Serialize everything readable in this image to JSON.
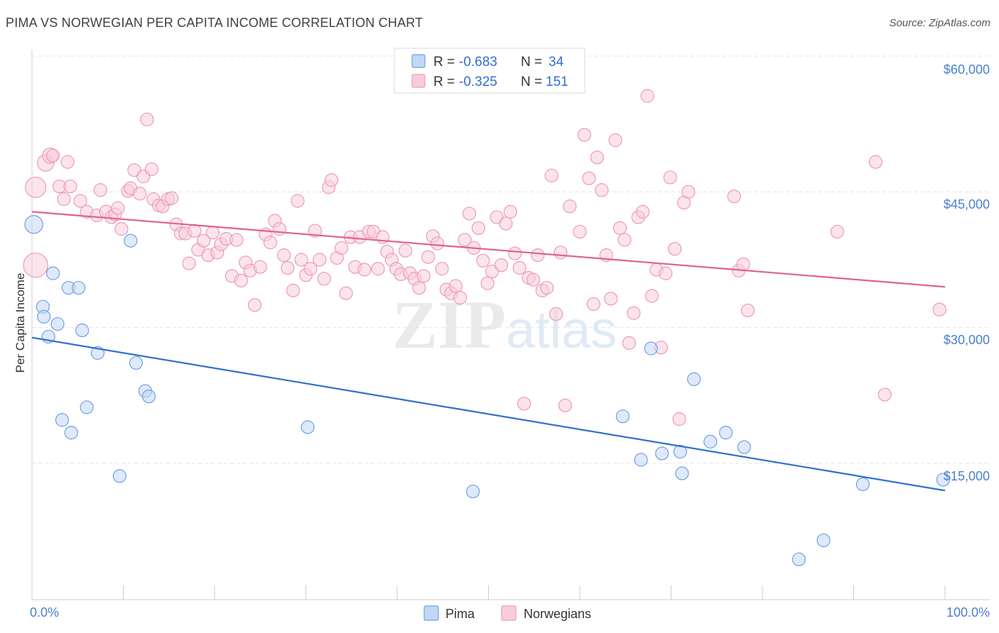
{
  "header": {
    "title": "PIMA VS NORWEGIAN PER CAPITA INCOME CORRELATION CHART",
    "source": "Source: ZipAtlas.com"
  },
  "watermark": {
    "zip": "ZIP",
    "atlas": "atlas"
  },
  "chart_data": {
    "type": "scatter",
    "ylabel": "Per Capita Income",
    "x_tick_labels": [
      "0.0%",
      "100.0%"
    ],
    "y_tick_labels": [
      "$60,000",
      "$45,000",
      "$30,000",
      "$15,000"
    ],
    "y_ticks": [
      60000,
      45000,
      30000,
      15000
    ],
    "xlim": [
      0,
      100
    ],
    "ylim": [
      1000,
      62000
    ],
    "grid": true,
    "legend_placement": "top-center",
    "stats": [
      {
        "r_label": "R = ",
        "r": "-0.683",
        "n_label": "N = ",
        "n": "34"
      },
      {
        "r_label": "R = ",
        "r": "-0.325",
        "n_label": "N = ",
        "n": "151"
      }
    ],
    "series": [
      {
        "name": "Pima",
        "color": "#6fa1e4",
        "fill": "#c3d7f4",
        "line_color": "#2f6fcf",
        "trend": [
          [
            0,
            28900
          ],
          [
            100,
            12000
          ]
        ],
        "points": [
          [
            0.2,
            41400,
            1.4
          ],
          [
            2.3,
            36000,
            1
          ],
          [
            1.2,
            32300,
            1
          ],
          [
            1.3,
            31200,
            1
          ],
          [
            2.8,
            30400,
            1
          ],
          [
            1.8,
            29000,
            1
          ],
          [
            4.0,
            34400,
            1
          ],
          [
            5.1,
            34400,
            1
          ],
          [
            5.5,
            29700,
            1
          ],
          [
            7.2,
            27200,
            1
          ],
          [
            10.8,
            39600,
            1
          ],
          [
            11.4,
            26100,
            1
          ],
          [
            12.4,
            23000,
            1
          ],
          [
            12.8,
            22400,
            1
          ],
          [
            6.0,
            21200,
            1
          ],
          [
            3.3,
            19800,
            1
          ],
          [
            4.3,
            18400,
            1
          ],
          [
            9.6,
            13600,
            1
          ],
          [
            30.2,
            19000,
            1
          ],
          [
            48.3,
            11900,
            1
          ],
          [
            67.8,
            27700,
            1
          ],
          [
            72.5,
            24300,
            1
          ],
          [
            64.7,
            20200,
            1
          ],
          [
            69.0,
            16100,
            1
          ],
          [
            71.0,
            16300,
            1
          ],
          [
            71.2,
            13900,
            1
          ],
          [
            66.7,
            15400,
            1
          ],
          [
            74.3,
            17400,
            1
          ],
          [
            76.0,
            18400,
            1
          ],
          [
            78.0,
            16800,
            1
          ],
          [
            91.0,
            12700,
            1
          ],
          [
            99.8,
            13200,
            1
          ],
          [
            86.7,
            6500,
            1
          ],
          [
            84.0,
            4400,
            1
          ]
        ]
      },
      {
        "name": "Norwegians",
        "color": "#ee9ab5",
        "fill": "#f8cddb",
        "line_color": "#e0628e",
        "trend": [
          [
            0,
            42800
          ],
          [
            100,
            34500
          ]
        ],
        "points": [
          [
            0.4,
            45500,
            1.6
          ],
          [
            0.4,
            36900,
            1.9
          ],
          [
            1.5,
            48200,
            1.3
          ],
          [
            2.0,
            49000,
            1.2
          ],
          [
            2.3,
            49000,
            1
          ],
          [
            3.9,
            48300,
            1
          ],
          [
            3.0,
            45600,
            1
          ],
          [
            4.2,
            45600,
            1
          ],
          [
            5.3,
            44000,
            1
          ],
          [
            6.0,
            42800,
            1
          ],
          [
            3.5,
            44200,
            1
          ],
          [
            7.1,
            42400,
            1
          ],
          [
            7.5,
            45200,
            1
          ],
          [
            8.1,
            42800,
            1
          ],
          [
            8.7,
            42200,
            1
          ],
          [
            9.1,
            42500,
            1
          ],
          [
            9.4,
            43200,
            1
          ],
          [
            9.8,
            40900,
            1
          ],
          [
            10.5,
            45100,
            1
          ],
          [
            10.8,
            45400,
            1
          ],
          [
            11.2,
            47400,
            1
          ],
          [
            11.8,
            44800,
            1
          ],
          [
            12.2,
            46700,
            1
          ],
          [
            12.6,
            53000,
            1
          ],
          [
            13.1,
            47500,
            1
          ],
          [
            13.3,
            44200,
            1
          ],
          [
            13.9,
            43500,
            1
          ],
          [
            14.3,
            43400,
            1
          ],
          [
            14.9,
            44200,
            1
          ],
          [
            15.3,
            44300,
            1
          ],
          [
            15.8,
            41400,
            1
          ],
          [
            16.3,
            40400,
            1
          ],
          [
            16.8,
            40400,
            1
          ],
          [
            17.2,
            37100,
            1
          ],
          [
            17.8,
            40700,
            1
          ],
          [
            18.2,
            38600,
            1
          ],
          [
            18.8,
            39600,
            1
          ],
          [
            19.3,
            38000,
            1
          ],
          [
            19.8,
            40500,
            1
          ],
          [
            20.3,
            38300,
            1
          ],
          [
            20.7,
            39200,
            1
          ],
          [
            21.3,
            39800,
            1
          ],
          [
            21.9,
            35700,
            1
          ],
          [
            22.4,
            39700,
            1
          ],
          [
            22.9,
            35200,
            1
          ],
          [
            23.4,
            37200,
            1
          ],
          [
            23.9,
            36300,
            1
          ],
          [
            24.4,
            32500,
            1
          ],
          [
            25.0,
            36700,
            1
          ],
          [
            25.6,
            40300,
            1
          ],
          [
            26.1,
            39400,
            1
          ],
          [
            26.6,
            41800,
            1
          ],
          [
            27.1,
            40900,
            1
          ],
          [
            27.6,
            38000,
            1
          ],
          [
            28.0,
            36600,
            1
          ],
          [
            28.6,
            34100,
            1
          ],
          [
            29.1,
            44000,
            1
          ],
          [
            29.5,
            37500,
            1
          ],
          [
            30.0,
            35800,
            1
          ],
          [
            30.5,
            36500,
            1
          ],
          [
            31.0,
            40700,
            1
          ],
          [
            31.5,
            37500,
            1
          ],
          [
            32.0,
            35400,
            1
          ],
          [
            32.5,
            45500,
            1
          ],
          [
            32.8,
            46300,
            1
          ],
          [
            33.4,
            37700,
            1
          ],
          [
            33.9,
            38800,
            1
          ],
          [
            34.4,
            33800,
            1
          ],
          [
            34.9,
            40000,
            1
          ],
          [
            35.4,
            36700,
            1
          ],
          [
            35.9,
            40000,
            1
          ],
          [
            36.4,
            36400,
            1
          ],
          [
            36.9,
            40600,
            1
          ],
          [
            37.4,
            40600,
            1
          ],
          [
            37.9,
            36500,
            1
          ],
          [
            38.4,
            40000,
            1
          ],
          [
            38.9,
            38400,
            1
          ],
          [
            39.4,
            37500,
            1
          ],
          [
            39.9,
            36500,
            1
          ],
          [
            40.4,
            35900,
            1
          ],
          [
            40.9,
            38500,
            1
          ],
          [
            41.4,
            36000,
            1
          ],
          [
            41.9,
            35400,
            1
          ],
          [
            42.4,
            34400,
            1
          ],
          [
            42.9,
            35700,
            1
          ],
          [
            43.4,
            37800,
            1
          ],
          [
            43.9,
            40100,
            1
          ],
          [
            44.4,
            39300,
            1
          ],
          [
            44.9,
            36500,
            1
          ],
          [
            45.4,
            34200,
            1
          ],
          [
            45.9,
            33800,
            1
          ],
          [
            46.4,
            34600,
            1
          ],
          [
            46.9,
            33300,
            1
          ],
          [
            47.4,
            39700,
            1
          ],
          [
            47.9,
            42600,
            1
          ],
          [
            48.4,
            38800,
            1
          ],
          [
            48.9,
            41000,
            1
          ],
          [
            49.4,
            37400,
            1
          ],
          [
            49.9,
            34900,
            1
          ],
          [
            50.4,
            36200,
            1
          ],
          [
            50.9,
            42200,
            1
          ],
          [
            51.4,
            36900,
            1
          ],
          [
            51.9,
            41500,
            1
          ],
          [
            52.4,
            42800,
            1
          ],
          [
            52.9,
            38200,
            1
          ],
          [
            53.4,
            36600,
            1
          ],
          [
            53.9,
            21600,
            1
          ],
          [
            54.4,
            35500,
            1
          ],
          [
            54.9,
            35300,
            1
          ],
          [
            55.4,
            38000,
            1
          ],
          [
            55.9,
            34100,
            1
          ],
          [
            56.4,
            34400,
            1
          ],
          [
            56.9,
            46800,
            1
          ],
          [
            57.4,
            31500,
            1
          ],
          [
            57.9,
            38300,
            1
          ],
          [
            58.4,
            21400,
            1
          ],
          [
            58.9,
            43400,
            1
          ],
          [
            60.0,
            40600,
            1
          ],
          [
            60.5,
            51300,
            1
          ],
          [
            61.0,
            46500,
            1
          ],
          [
            61.5,
            32600,
            1
          ],
          [
            61.9,
            48800,
            1
          ],
          [
            62.4,
            45200,
            1
          ],
          [
            62.9,
            38000,
            1
          ],
          [
            63.4,
            33200,
            1
          ],
          [
            63.9,
            50700,
            1
          ],
          [
            64.4,
            41000,
            1
          ],
          [
            64.9,
            39700,
            1
          ],
          [
            65.4,
            28300,
            1
          ],
          [
            65.9,
            31600,
            1
          ],
          [
            66.4,
            42200,
            1
          ],
          [
            66.9,
            42800,
            1
          ],
          [
            67.4,
            55600,
            1
          ],
          [
            67.9,
            33500,
            1
          ],
          [
            68.4,
            36400,
            1
          ],
          [
            68.9,
            27800,
            1
          ],
          [
            69.4,
            36000,
            1
          ],
          [
            69.9,
            46600,
            1
          ],
          [
            70.4,
            38700,
            1
          ],
          [
            70.9,
            19900,
            1
          ],
          [
            71.4,
            43800,
            1
          ],
          [
            71.9,
            45000,
            1
          ],
          [
            76.9,
            44500,
            1
          ],
          [
            77.4,
            36300,
            1
          ],
          [
            77.9,
            37000,
            1
          ],
          [
            78.4,
            31900,
            1
          ],
          [
            88.2,
            40600,
            1
          ],
          [
            92.4,
            48300,
            1
          ],
          [
            93.4,
            22600,
            1
          ],
          [
            99.4,
            32000,
            1
          ]
        ]
      }
    ]
  }
}
